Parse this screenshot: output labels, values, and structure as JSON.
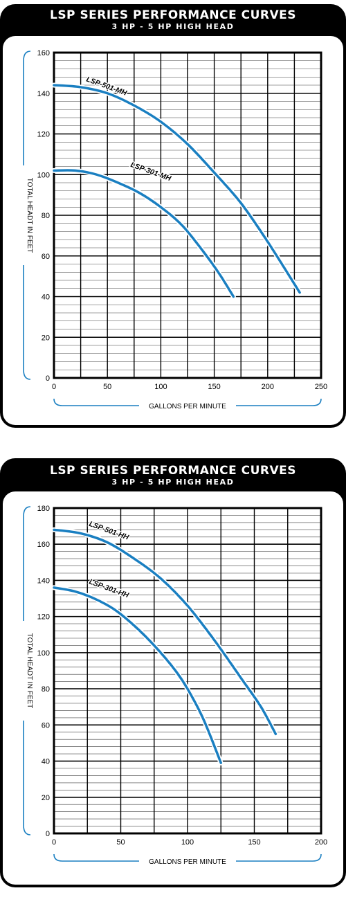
{
  "charts": [
    {
      "title": "LSP SERIES PERFORMANCE CURVES",
      "subtitle": "3 HP - 5 HP HIGH HEAD"
    },
    {
      "title": "LSP SERIES PERFORMANCE CURVES",
      "subtitle": "3 HP - 5 HP HIGH HEAD"
    }
  ],
  "colors": {
    "curve": "#1a7fc1",
    "axis_bracket": "#1a7fc1",
    "frame": "#000000",
    "grid": "#000000"
  },
  "chart_data": [
    {
      "type": "line",
      "title": "LSP SERIES PERFORMANCE CURVES",
      "subtitle": "3 HP - 5 HP HIGH HEAD",
      "xlabel": "GALLONS PER MINUTE",
      "ylabel": "TOTAL HEADT IN FEET",
      "xlim": [
        0,
        250
      ],
      "ylim": [
        0,
        160
      ],
      "xticks": [
        "0",
        "50",
        "100",
        "150",
        "200",
        "250"
      ],
      "yticks": [
        "0",
        "20",
        "40",
        "60",
        "80",
        "100",
        "120",
        "140",
        "160"
      ],
      "grid": true,
      "series": [
        {
          "name": "LSP-501-MH",
          "x": [
            0,
            25,
            50,
            75,
            100,
            125,
            150,
            175,
            200,
            230
          ],
          "y": [
            144,
            143,
            140,
            134,
            126,
            115,
            101,
            86,
            67,
            42
          ]
        },
        {
          "name": "LSP-301-MH",
          "x": [
            0,
            20,
            40,
            60,
            80,
            100,
            120,
            140,
            155,
            168
          ],
          "y": [
            102,
            102,
            100,
            96,
            91,
            84,
            75,
            62,
            51,
            40
          ]
        }
      ]
    },
    {
      "type": "line",
      "title": "LSP SERIES PERFORMANCE CURVES",
      "subtitle": "3 HP - 5 HP HIGH HEAD",
      "xlabel": "GALLONS PER MINUTE",
      "ylabel": "TOTAL HEADT IN FEET",
      "xlim": [
        0,
        200
      ],
      "ylim": [
        0,
        180
      ],
      "xticks": [
        "0",
        "50",
        "100",
        "150",
        "200"
      ],
      "yticks": [
        "0",
        "20",
        "40",
        "60",
        "80",
        "100",
        "120",
        "140",
        "160",
        "180"
      ],
      "grid": true,
      "series": [
        {
          "name": "LSP-501-HH",
          "x": [
            0,
            20,
            40,
            60,
            80,
            100,
            120,
            140,
            155,
            166
          ],
          "y": [
            168,
            166,
            161,
            152,
            141,
            126,
            107,
            86,
            70,
            55
          ]
        },
        {
          "name": "LSP-301-HH",
          "x": [
            0,
            15,
            30,
            45,
            60,
            75,
            90,
            100,
            112,
            125
          ],
          "y": [
            136,
            134,
            130,
            124,
            115,
            104,
            91,
            80,
            63,
            39
          ]
        }
      ]
    }
  ]
}
